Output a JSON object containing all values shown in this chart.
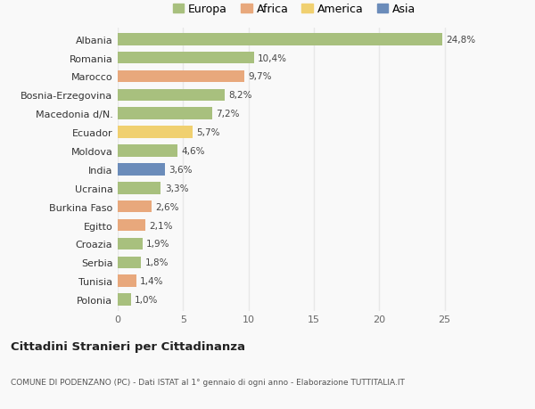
{
  "countries": [
    "Albania",
    "Romania",
    "Marocco",
    "Bosnia-Erzegovina",
    "Macedonia d/N.",
    "Ecuador",
    "Moldova",
    "India",
    "Ucraina",
    "Burkina Faso",
    "Egitto",
    "Croazia",
    "Serbia",
    "Tunisia",
    "Polonia"
  ],
  "values": [
    24.8,
    10.4,
    9.7,
    8.2,
    7.2,
    5.7,
    4.6,
    3.6,
    3.3,
    2.6,
    2.1,
    1.9,
    1.8,
    1.4,
    1.0
  ],
  "labels": [
    "24,8%",
    "10,4%",
    "9,7%",
    "8,2%",
    "7,2%",
    "5,7%",
    "4,6%",
    "3,6%",
    "3,3%",
    "2,6%",
    "2,1%",
    "1,9%",
    "1,8%",
    "1,4%",
    "1,0%"
  ],
  "continents": [
    "Europa",
    "Europa",
    "Africa",
    "Europa",
    "Europa",
    "America",
    "Europa",
    "Asia",
    "Europa",
    "Africa",
    "Africa",
    "Europa",
    "Europa",
    "Africa",
    "Europa"
  ],
  "colors": {
    "Europa": "#a8c07e",
    "Africa": "#e8a87c",
    "America": "#f0d070",
    "Asia": "#6b8cba"
  },
  "xlim": [
    0,
    27
  ],
  "xticks": [
    0,
    5,
    10,
    15,
    20,
    25
  ],
  "title": "Cittadini Stranieri per Cittadinanza",
  "subtitle": "COMUNE DI PODENZANO (PC) - Dati ISTAT al 1° gennaio di ogni anno - Elaborazione TUTTITALIA.IT",
  "background_color": "#f9f9f9",
  "grid_color": "#e8e8e8"
}
